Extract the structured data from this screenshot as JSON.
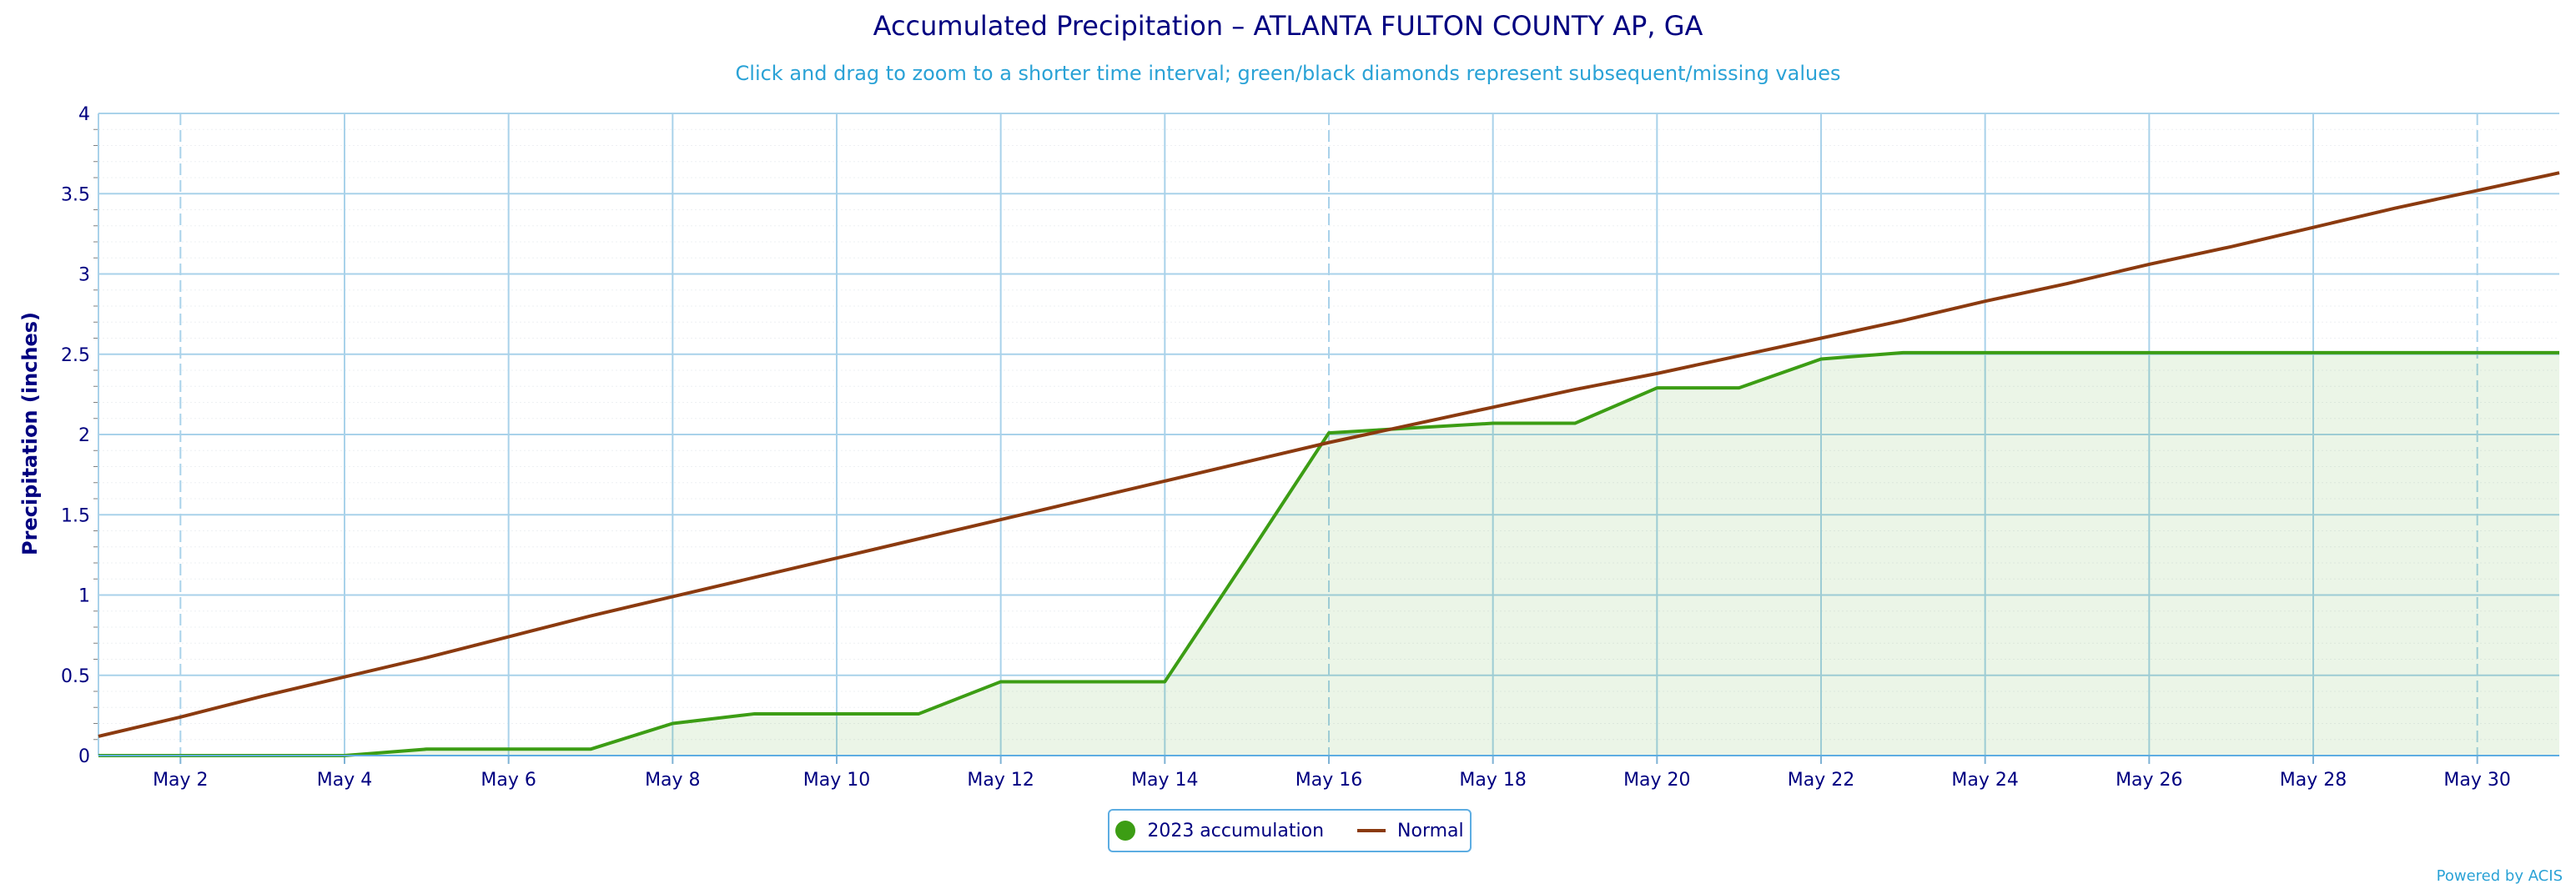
{
  "chart_data": {
    "type": "line",
    "title": "Accumulated Precipitation – ATLANTA FULTON COUNTY AP, GA",
    "subtitle": "Click and drag to zoom to a shorter time interval; green/black diamonds represent subsequent/missing values",
    "xlabel": "",
    "ylabel": "Precipitation (inches)",
    "ylim": [
      0,
      4
    ],
    "y_ticks": [
      "0",
      "0.5",
      "1",
      "1.5",
      "2",
      "2.5",
      "3",
      "3.5",
      "4"
    ],
    "x_tick_labels": [
      "May 2",
      "May 4",
      "May 6",
      "May 8",
      "May 10",
      "May 12",
      "May 14",
      "May 16",
      "May 18",
      "May 20",
      "May 22",
      "May 24",
      "May 26",
      "May 28",
      "May 30"
    ],
    "grid": true,
    "legend_position": "bottom-center",
    "x": [
      "May 1",
      "May 2",
      "May 3",
      "May 4",
      "May 5",
      "May 6",
      "May 7",
      "May 8",
      "May 9",
      "May 10",
      "May 11",
      "May 12",
      "May 13",
      "May 14",
      "May 15",
      "May 16",
      "May 17",
      "May 18",
      "May 19",
      "May 20",
      "May 21",
      "May 22",
      "May 23",
      "May 24",
      "May 25",
      "May 26",
      "May 27",
      "May 28",
      "May 29",
      "May 30",
      "May 31"
    ],
    "series": [
      {
        "name": "2023 accumulation",
        "color": "#3c9d14",
        "fill": true,
        "values": [
          0,
          0,
          0,
          0,
          0.04,
          0.04,
          0.04,
          0.2,
          0.26,
          0.26,
          0.26,
          0.46,
          0.46,
          0.46,
          1.23,
          2.01,
          2.04,
          2.07,
          2.07,
          2.29,
          2.29,
          2.47,
          2.51,
          2.51,
          2.51,
          2.51,
          2.51,
          2.51,
          2.51,
          2.51,
          2.51
        ]
      },
      {
        "name": "Normal",
        "color": "#8b3a0f",
        "fill": false,
        "values": [
          0.12,
          0.24,
          0.37,
          0.49,
          0.61,
          0.74,
          0.87,
          0.99,
          1.11,
          1.23,
          1.35,
          1.47,
          1.59,
          1.71,
          1.83,
          1.95,
          2.06,
          2.17,
          2.28,
          2.38,
          2.49,
          2.6,
          2.71,
          2.83,
          2.94,
          3.06,
          3.17,
          3.29,
          3.41,
          3.52,
          3.63
        ]
      }
    ]
  },
  "credits": "Powered by ACIS"
}
